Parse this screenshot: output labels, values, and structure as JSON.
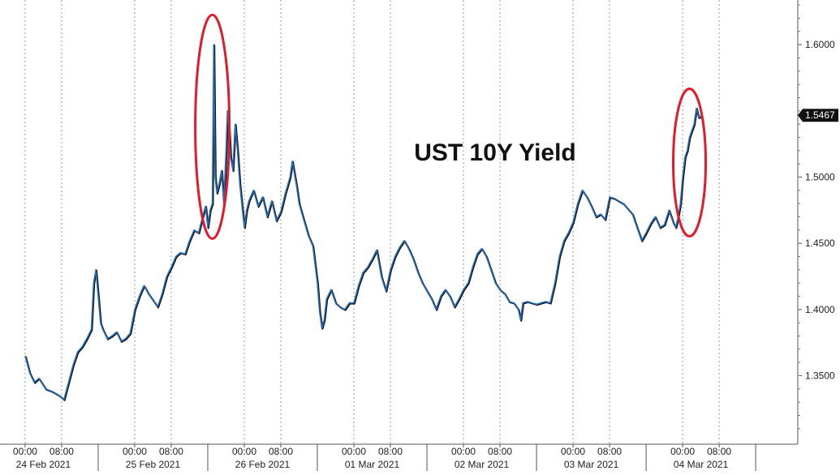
{
  "chart_data": {
    "type": "line",
    "title": "UST 10Y Yield",
    "xlabel": "",
    "ylabel": "",
    "ylim": [
      1.3,
      1.68
    ],
    "yticks": [
      1.35,
      1.4,
      1.45,
      1.5,
      1.6
    ],
    "ytick_labels": [
      "1.3500",
      "1.4000",
      "1.4500",
      "1.5000",
      "1.6000"
    ],
    "y_axis_position": "right",
    "grid": "vertical dotted",
    "last_value": 1.5467,
    "last_value_label": "1.5467",
    "xlim_hours": [
      -13,
      121
    ],
    "day_labels": [
      {
        "hour": 4,
        "label": "24 Feb 2021"
      },
      {
        "hour": 28,
        "label": "25 Feb 2021"
      },
      {
        "hour": 52,
        "label": "26 Feb 2021"
      },
      {
        "hour": 76,
        "label": "01 Mar 2021"
      },
      {
        "hour": 100,
        "label": "02 Mar 2021"
      },
      {
        "hour": 124,
        "label": "03 Mar 2021"
      },
      {
        "hour": 148,
        "label": "04 Mar 2021"
      }
    ],
    "time_ticks": [
      {
        "hour": 0,
        "label": "00:00"
      },
      {
        "hour": 8,
        "label": "08:00"
      },
      {
        "hour": 24,
        "label": "00:00"
      },
      {
        "hour": 32,
        "label": "08:00"
      },
      {
        "hour": 48,
        "label": "00:00"
      },
      {
        "hour": 56,
        "label": "08:00"
      },
      {
        "hour": 72,
        "label": "00:00"
      },
      {
        "hour": 80,
        "label": "08:00"
      },
      {
        "hour": 96,
        "label": "00:00"
      },
      {
        "hour": 104,
        "label": "08:00"
      },
      {
        "hour": 120,
        "label": "00:00"
      },
      {
        "hour": 128,
        "label": "08:00"
      },
      {
        "hour": 144,
        "label": "00:00"
      },
      {
        "hour": 152,
        "label": "08:00"
      }
    ],
    "series": [
      {
        "color": "#2a6fb8",
        "shadow_color": "#111111",
        "points": [
          [
            0.0,
            1.365
          ],
          [
            1.0,
            1.352
          ],
          [
            2.0,
            1.345
          ],
          [
            3.0,
            1.348
          ],
          [
            4.5,
            1.34
          ],
          [
            6.0,
            1.338
          ],
          [
            7.5,
            1.335
          ],
          [
            8.5,
            1.332
          ],
          [
            9.5,
            1.345
          ],
          [
            10.5,
            1.358
          ],
          [
            11.5,
            1.368
          ],
          [
            12.5,
            1.372
          ],
          [
            13.5,
            1.378
          ],
          [
            14.5,
            1.385
          ],
          [
            15.0,
            1.42
          ],
          [
            15.5,
            1.43
          ],
          [
            16.0,
            1.41
          ],
          [
            16.5,
            1.39
          ],
          [
            17.0,
            1.385
          ],
          [
            18.0,
            1.378
          ],
          [
            19.0,
            1.38
          ],
          [
            20.0,
            1.383
          ],
          [
            21.0,
            1.376
          ],
          [
            22.0,
            1.378
          ],
          [
            23.0,
            1.382
          ],
          [
            24.0,
            1.4
          ],
          [
            25.0,
            1.41
          ],
          [
            26.0,
            1.418
          ],
          [
            27.0,
            1.412
          ],
          [
            28.0,
            1.407
          ],
          [
            29.0,
            1.402
          ],
          [
            30.0,
            1.412
          ],
          [
            31.0,
            1.425
          ],
          [
            32.0,
            1.432
          ],
          [
            33.0,
            1.44
          ],
          [
            34.0,
            1.443
          ],
          [
            35.0,
            1.442
          ],
          [
            36.0,
            1.452
          ],
          [
            37.0,
            1.46
          ],
          [
            38.0,
            1.458
          ],
          [
            38.5,
            1.465
          ],
          [
            39.0,
            1.472
          ],
          [
            39.5,
            1.478
          ],
          [
            40.0,
            1.462
          ],
          [
            40.5,
            1.475
          ],
          [
            41.0,
            1.48
          ],
          [
            41.3,
            1.6
          ],
          [
            41.6,
            1.5
          ],
          [
            42.0,
            1.488
          ],
          [
            42.5,
            1.495
          ],
          [
            43.0,
            1.505
          ],
          [
            43.5,
            1.48
          ],
          [
            44.0,
            1.52
          ],
          [
            44.3,
            1.55
          ],
          [
            44.7,
            1.535
          ],
          [
            45.0,
            1.515
          ],
          [
            45.5,
            1.505
          ],
          [
            46.0,
            1.54
          ],
          [
            46.5,
            1.52
          ],
          [
            47.0,
            1.495
          ],
          [
            47.5,
            1.478
          ],
          [
            48.0,
            1.462
          ],
          [
            48.5,
            1.475
          ],
          [
            49.0,
            1.482
          ],
          [
            50.0,
            1.49
          ],
          [
            51.0,
            1.478
          ],
          [
            52.0,
            1.485
          ],
          [
            53.0,
            1.47
          ],
          [
            54.0,
            1.482
          ],
          [
            55.0,
            1.467
          ],
          [
            56.0,
            1.474
          ],
          [
            57.0,
            1.488
          ],
          [
            58.0,
            1.5
          ],
          [
            58.5,
            1.512
          ],
          [
            59.0,
            1.502
          ],
          [
            59.5,
            1.492
          ],
          [
            60.0,
            1.48
          ],
          [
            61.0,
            1.468
          ],
          [
            62.0,
            1.456
          ],
          [
            63.0,
            1.448
          ],
          [
            64.0,
            1.42
          ],
          [
            64.5,
            1.398
          ],
          [
            65.0,
            1.386
          ],
          [
            65.5,
            1.392
          ],
          [
            66.0,
            1.408
          ],
          [
            67.0,
            1.415
          ],
          [
            68.0,
            1.405
          ],
          [
            69.0,
            1.402
          ],
          [
            70.0,
            1.4
          ],
          [
            71.0,
            1.405
          ],
          [
            72.0,
            1.405
          ],
          [
            73.0,
            1.418
          ],
          [
            74.0,
            1.428
          ],
          [
            75.0,
            1.432
          ],
          [
            76.0,
            1.438
          ],
          [
            77.0,
            1.445
          ],
          [
            78.0,
            1.425
          ],
          [
            79.0,
            1.414
          ],
          [
            80.0,
            1.43
          ],
          [
            81.0,
            1.44
          ],
          [
            82.0,
            1.447
          ],
          [
            83.0,
            1.452
          ],
          [
            84.0,
            1.446
          ],
          [
            85.0,
            1.438
          ],
          [
            86.0,
            1.428
          ],
          [
            87.0,
            1.42
          ],
          [
            88.0,
            1.414
          ],
          [
            89.0,
            1.408
          ],
          [
            90.0,
            1.4
          ],
          [
            91.0,
            1.41
          ],
          [
            92.0,
            1.415
          ],
          [
            93.0,
            1.41
          ],
          [
            94.0,
            1.402
          ],
          [
            95.0,
            1.408
          ],
          [
            96.0,
            1.415
          ],
          [
            97.0,
            1.42
          ],
          [
            98.0,
            1.432
          ],
          [
            99.0,
            1.442
          ],
          [
            100.0,
            1.446
          ],
          [
            101.0,
            1.44
          ],
          [
            102.0,
            1.43
          ],
          [
            103.0,
            1.42
          ],
          [
            104.0,
            1.415
          ],
          [
            105.0,
            1.412
          ],
          [
            106.0,
            1.406
          ],
          [
            107.0,
            1.405
          ],
          [
            108.0,
            1.4
          ],
          [
            108.5,
            1.392
          ],
          [
            109.0,
            1.405
          ],
          [
            110.0,
            1.406
          ],
          [
            111.0,
            1.405
          ],
          [
            112.0,
            1.404
          ],
          [
            113.0,
            1.405
          ],
          [
            114.0,
            1.406
          ],
          [
            115.0,
            1.405
          ],
          [
            116.0,
            1.42
          ],
          [
            117.0,
            1.44
          ],
          [
            118.0,
            1.452
          ],
          [
            119.0,
            1.458
          ],
          [
            120.0,
            1.466
          ],
          [
            121.0,
            1.48
          ],
          [
            122.0,
            1.49
          ],
          [
            123.0,
            1.485
          ],
          [
            124.0,
            1.478
          ],
          [
            125.0,
            1.47
          ],
          [
            126.0,
            1.472
          ],
          [
            127.0,
            1.468
          ],
          [
            128.0,
            1.485
          ],
          [
            129.0,
            1.484
          ],
          [
            130.0,
            1.482
          ],
          [
            131.0,
            1.48
          ],
          [
            132.0,
            1.476
          ],
          [
            133.0,
            1.472
          ],
          [
            134.0,
            1.462
          ],
          [
            135.0,
            1.452
          ],
          [
            136.0,
            1.458
          ],
          [
            137.0,
            1.465
          ],
          [
            138.0,
            1.47
          ],
          [
            139.0,
            1.462
          ],
          [
            140.0,
            1.464
          ],
          [
            141.0,
            1.475
          ],
          [
            142.0,
            1.465
          ],
          [
            142.5,
            1.462
          ],
          [
            143.0,
            1.47
          ],
          [
            143.5,
            1.48
          ],
          [
            144.0,
            1.5
          ],
          [
            144.5,
            1.515
          ],
          [
            145.0,
            1.52
          ],
          [
            145.5,
            1.53
          ],
          [
            146.0,
            1.535
          ],
          [
            146.5,
            1.54
          ],
          [
            147.0,
            1.552
          ],
          [
            147.5,
            1.545
          ],
          [
            148.0,
            1.546
          ]
        ]
      }
    ],
    "annotations": [
      {
        "type": "ellipse",
        "color": "#e3192c",
        "center_hour": 41.0,
        "center_y": 1.538
      },
      {
        "type": "ellipse",
        "color": "#e3192c",
        "center_hour": 145.5,
        "center_y": 1.511
      }
    ]
  }
}
